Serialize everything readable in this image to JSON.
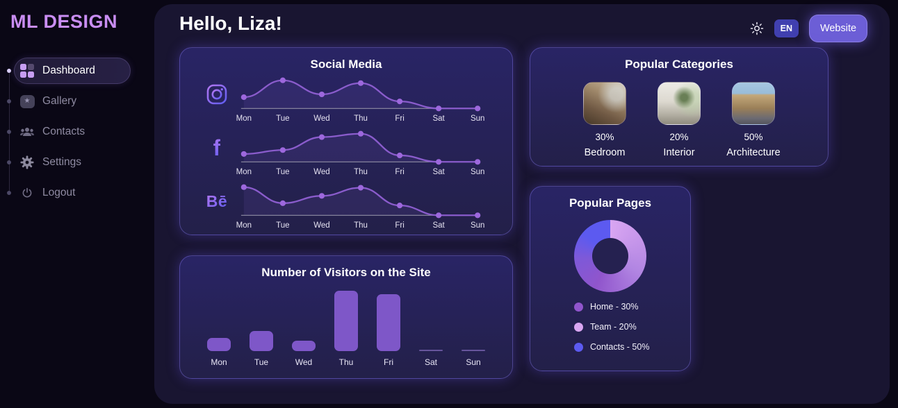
{
  "brand": "ML DESIGN",
  "sidebar": {
    "items": [
      {
        "label": "Dashboard",
        "active": true
      },
      {
        "label": "Gallery",
        "active": false
      },
      {
        "label": "Contacts",
        "active": false
      },
      {
        "label": "Settings",
        "active": false
      },
      {
        "label": "Logout",
        "active": false
      }
    ]
  },
  "header": {
    "greeting": "Hello, Liza!",
    "language": "EN",
    "website_button": "Website"
  },
  "social": {
    "title": "Social Media",
    "facebook_glyph": "f",
    "behance_glyph": "Bē"
  },
  "visitors": {
    "title": "Number of Visitors on the Site"
  },
  "categories": {
    "title": "Popular Categories",
    "items": [
      {
        "percent": "30%",
        "label": "Bedroom"
      },
      {
        "percent": "20%",
        "label": "Interior"
      },
      {
        "percent": "50%",
        "label": "Architecture"
      }
    ]
  },
  "pages": {
    "title": "Popular Pages",
    "legend": [
      {
        "label": "Home - 30%",
        "color": "#9055cc"
      },
      {
        "label": "Team - 20%",
        "color": "#d9a6f2"
      },
      {
        "label": "Contacts - 50%",
        "color": "#5c5af0"
      }
    ]
  },
  "theme": {
    "accent": "#6c5ed6",
    "line_color": "#8a5ccc",
    "dot_color": "#9d68dd",
    "bar_color": "#7e57c8"
  },
  "chart_data": [
    {
      "type": "line",
      "series": [
        {
          "name": "Instagram",
          "values": [
            40,
            100,
            50,
            90,
            25,
            0,
            0
          ]
        }
      ],
      "x": [
        "Mon",
        "Tue",
        "Wed",
        "Thu",
        "Fri",
        "Sat",
        "Sun"
      ],
      "title": "Social Media",
      "ylim": [
        0,
        100
      ],
      "grid": false,
      "legend_position": "left-icon"
    },
    {
      "type": "line",
      "series": [
        {
          "name": "Facebook",
          "values": [
            28,
            42,
            88,
            100,
            23,
            0,
            0
          ]
        }
      ],
      "x": [
        "Mon",
        "Tue",
        "Wed",
        "Thu",
        "Fri",
        "Sat",
        "Sun"
      ],
      "title": "Social Media",
      "ylim": [
        0,
        100
      ],
      "grid": false,
      "legend_position": "left-icon"
    },
    {
      "type": "line",
      "series": [
        {
          "name": "Behance",
          "values": [
            100,
            43,
            69,
            98,
            35,
            0,
            0
          ]
        }
      ],
      "x": [
        "Mon",
        "Tue",
        "Wed",
        "Thu",
        "Fri",
        "Sat",
        "Sun"
      ],
      "title": "Social Media",
      "ylim": [
        0,
        100
      ],
      "grid": false,
      "legend_position": "left-icon"
    },
    {
      "type": "bar",
      "categories": [
        "Mon",
        "Tue",
        "Wed",
        "Thu",
        "Fri",
        "Sat",
        "Sun"
      ],
      "values": [
        20,
        30,
        15,
        90,
        85,
        0,
        0
      ],
      "title": "Number of Visitors on the Site",
      "xlabel": "",
      "ylabel": "",
      "ylim": [
        0,
        100
      ],
      "grid": false
    },
    {
      "type": "pie",
      "variant": "donut",
      "labels": [
        "Home",
        "Team",
        "Contacts"
      ],
      "values": [
        30,
        20,
        50
      ],
      "colors": [
        "#9055cc",
        "#d9a6f2",
        "#5c5af0"
      ],
      "title": "Popular Pages",
      "legend_position": "bottom-left"
    }
  ]
}
